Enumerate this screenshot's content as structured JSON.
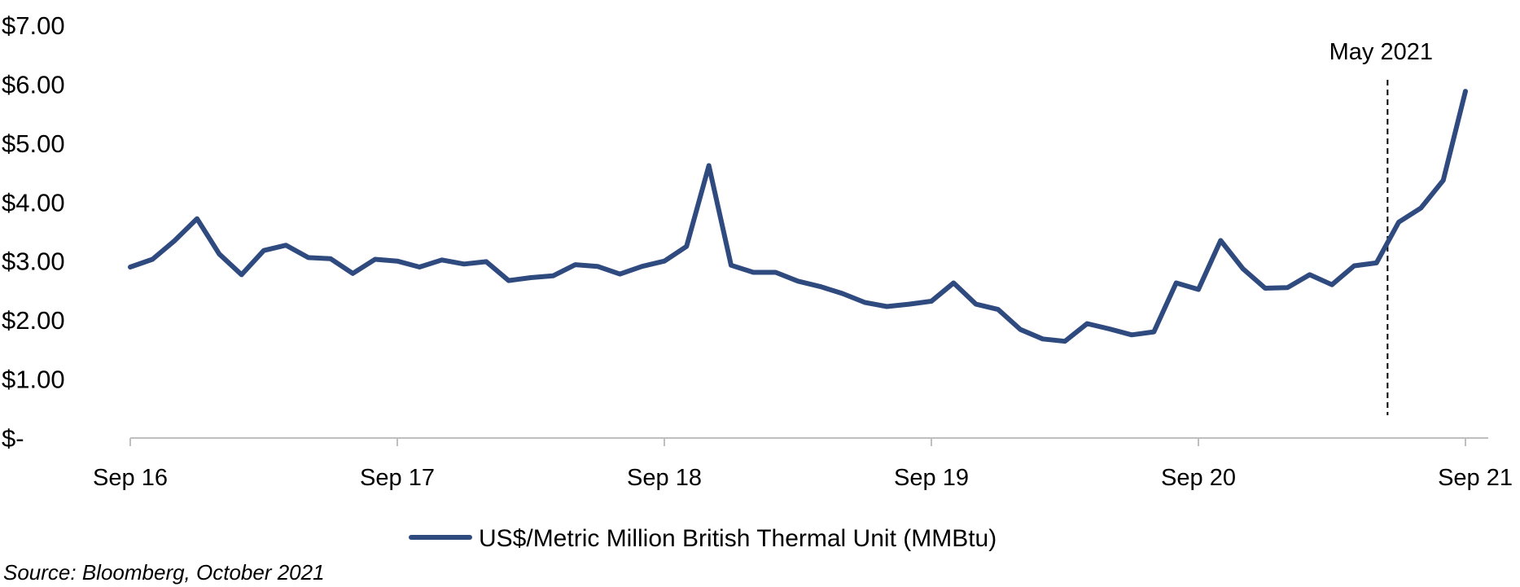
{
  "chart_data": {
    "type": "line",
    "title": "",
    "xlabel": "",
    "ylabel": "",
    "ylim": [
      0,
      7
    ],
    "y_ticks": [
      {
        "value": 7,
        "label": "$7.00"
      },
      {
        "value": 6,
        "label": "$6.00"
      },
      {
        "value": 5,
        "label": "$5.00"
      },
      {
        "value": 4,
        "label": "$4.00"
      },
      {
        "value": 3,
        "label": "$3.00"
      },
      {
        "value": 2,
        "label": "$2.00"
      },
      {
        "value": 1,
        "label": "$1.00"
      },
      {
        "value": 0,
        "label": "$-"
      }
    ],
    "x_ticks": [
      {
        "month_index": 0,
        "label": "Sep 16"
      },
      {
        "month_index": 12,
        "label": "Sep 17"
      },
      {
        "month_index": 24,
        "label": "Sep 18"
      },
      {
        "month_index": 36,
        "label": "Sep 19"
      },
      {
        "month_index": 48,
        "label": "Sep 20"
      },
      {
        "month_index": 60,
        "label": "Sep 21"
      }
    ],
    "grid": false,
    "legend_position": "bottom",
    "annotation": {
      "label": "May 2021",
      "month_index": 56.5,
      "style": "dashed-vertical-line"
    },
    "series": [
      {
        "name": "US$/Metric Million British Thermal Unit (MMBtu)",
        "color": "#2f4a7f",
        "values": [
          2.9,
          3.03,
          3.35,
          3.72,
          3.12,
          2.77,
          3.18,
          3.27,
          3.06,
          3.04,
          2.79,
          3.03,
          3.0,
          2.9,
          3.02,
          2.95,
          2.99,
          2.67,
          2.72,
          2.75,
          2.94,
          2.91,
          2.78,
          2.91,
          3.0,
          3.25,
          4.62,
          2.93,
          2.81,
          2.81,
          2.66,
          2.57,
          2.45,
          2.3,
          2.23,
          2.27,
          2.32,
          2.63,
          2.27,
          2.18,
          1.84,
          1.68,
          1.64,
          1.94,
          1.85,
          1.75,
          1.8,
          2.63,
          2.52,
          3.35,
          2.87,
          2.54,
          2.55,
          2.77,
          2.6,
          2.92,
          2.97,
          3.66,
          3.9,
          4.37,
          5.88
        ]
      }
    ]
  },
  "source_note": "Source: Bloomberg, October 2021"
}
